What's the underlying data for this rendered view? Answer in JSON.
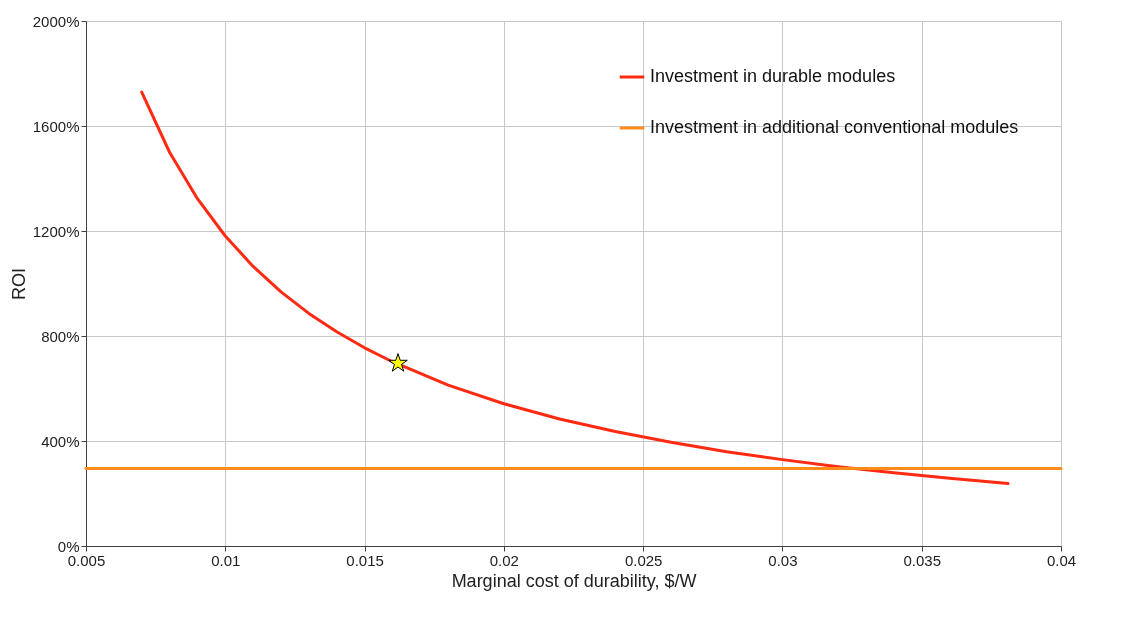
{
  "chart_data": {
    "type": "line",
    "xlabel": "Marginal cost of durability, $/W",
    "ylabel": "ROI",
    "xlim": [
      0.005,
      0.04
    ],
    "xticks": [
      0.005,
      0.01,
      0.015,
      0.02,
      0.025,
      0.03,
      0.035,
      0.04
    ],
    "ylim": [
      0,
      2000
    ],
    "yticks": [
      {
        "value": 0,
        "label": "0%"
      },
      {
        "value": 400,
        "label": "400%"
      },
      {
        "value": 800,
        "label": "800%"
      },
      {
        "value": 1200,
        "label": "1200%"
      },
      {
        "value": 1600,
        "label": "1600%"
      },
      {
        "value": 2000,
        "label": "2000%"
      }
    ],
    "grid": true,
    "legend": "top right",
    "marker": "none",
    "line_style": "solid",
    "series": [
      {
        "name": "Investment in durable modules",
        "color": "#ff2a12",
        "x": [
          0.007,
          0.008,
          0.009,
          0.01,
          0.011,
          0.012,
          0.013,
          0.014,
          0.015,
          0.016,
          0.018,
          0.02,
          0.022,
          0.024,
          0.026,
          0.028,
          0.03,
          0.032,
          0.034,
          0.036,
          0.0381
        ],
        "values": [
          1729,
          1500,
          1323,
          1181,
          1065,
          968,
          886,
          816,
          755,
          702,
          613,
          542,
          484,
          436,
          395,
          359,
          329,
          302,
          279,
          258,
          238
        ]
      },
      {
        "name": "Investment in additional conventional modules",
        "color": "#ff8c1a",
        "x": [
          0.005,
          0.04
        ],
        "values": [
          295,
          295
        ]
      },
      {
        "type": "scatter",
        "marker": "star",
        "color": "#ffff00",
        "x": [
          0.0162
        ],
        "values": [
          696
        ]
      }
    ]
  }
}
